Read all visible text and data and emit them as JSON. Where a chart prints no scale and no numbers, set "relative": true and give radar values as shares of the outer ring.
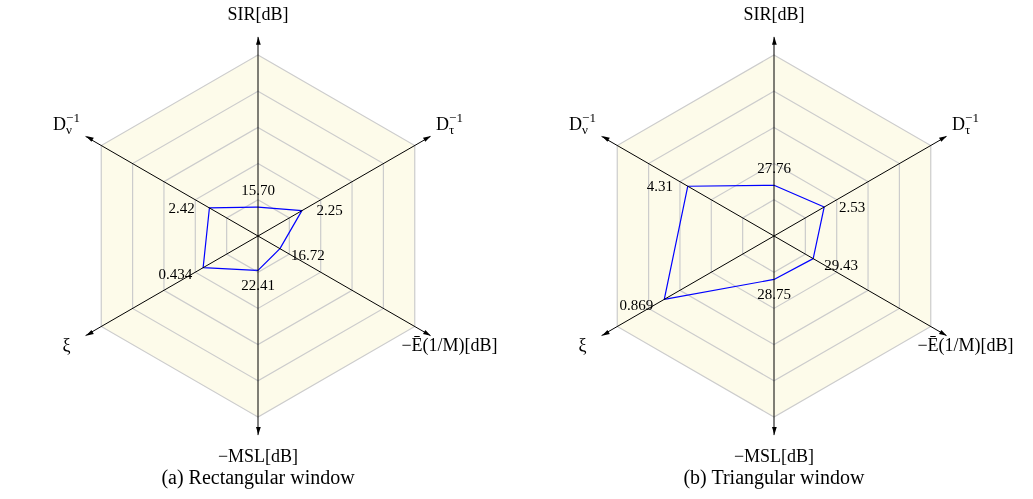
{
  "chart_data": [
    {
      "type": "radar",
      "title": "(a) Rectangular window",
      "categories": [
        "SIR[dB]",
        "D$_{τ}$$^{−1}$",
        "−Ē(1/M)[dB]",
        "−MSL[dB]",
        "ξ",
        "D$_{ν}$$^{−1}$"
      ],
      "relative": true,
      "grid": true,
      "legend": false,
      "marker": "none",
      "series": [
        {
          "color": "#0000ff",
          "values": [
            0.16,
            0.28,
            0.14,
            0.19,
            0.35,
            0.31
          ]
        }
      ],
      "annotations": [
        {
          "text": "15.70",
          "x": "SIR[dB]"
        },
        {
          "text": "2.25",
          "x": "D$_{τ}$$^{−1}$"
        },
        {
          "text": "16.72",
          "x": "−Ē(1/M)[dB]"
        },
        {
          "text": "22.41",
          "x": "−MSL[dB]"
        },
        {
          "text": "0.434",
          "x": "ξ"
        },
        {
          "text": "2.42",
          "x": "D$_{ν}$$^{−1}$"
        }
      ]
    },
    {
      "type": "radar",
      "title": "(b) Triangular window",
      "categories": [
        "SIR[dB]",
        "D$_{τ}$$^{−1}$",
        "−Ē(1/M)[dB]",
        "−MSL[dB]",
        "ξ",
        "D$_{ν}$$^{−1}$"
      ],
      "relative": true,
      "grid": true,
      "legend": false,
      "marker": "none",
      "series": [
        {
          "color": "#0000ff",
          "values": [
            0.28,
            0.32,
            0.25,
            0.24,
            0.7,
            0.55
          ]
        }
      ],
      "annotations": [
        {
          "text": "27.76",
          "x": "SIR[dB]"
        },
        {
          "text": "2.53",
          "x": "D$_{τ}$$^{−1}$"
        },
        {
          "text": "29.43",
          "x": "−Ē(1/M)[dB]"
        },
        {
          "text": "28.75",
          "x": "−MSL[dB]"
        },
        {
          "text": "0.869",
          "x": "ξ"
        },
        {
          "text": "4.31",
          "x": "D$_{ν}$$^{−1}$"
        }
      ]
    }
  ]
}
